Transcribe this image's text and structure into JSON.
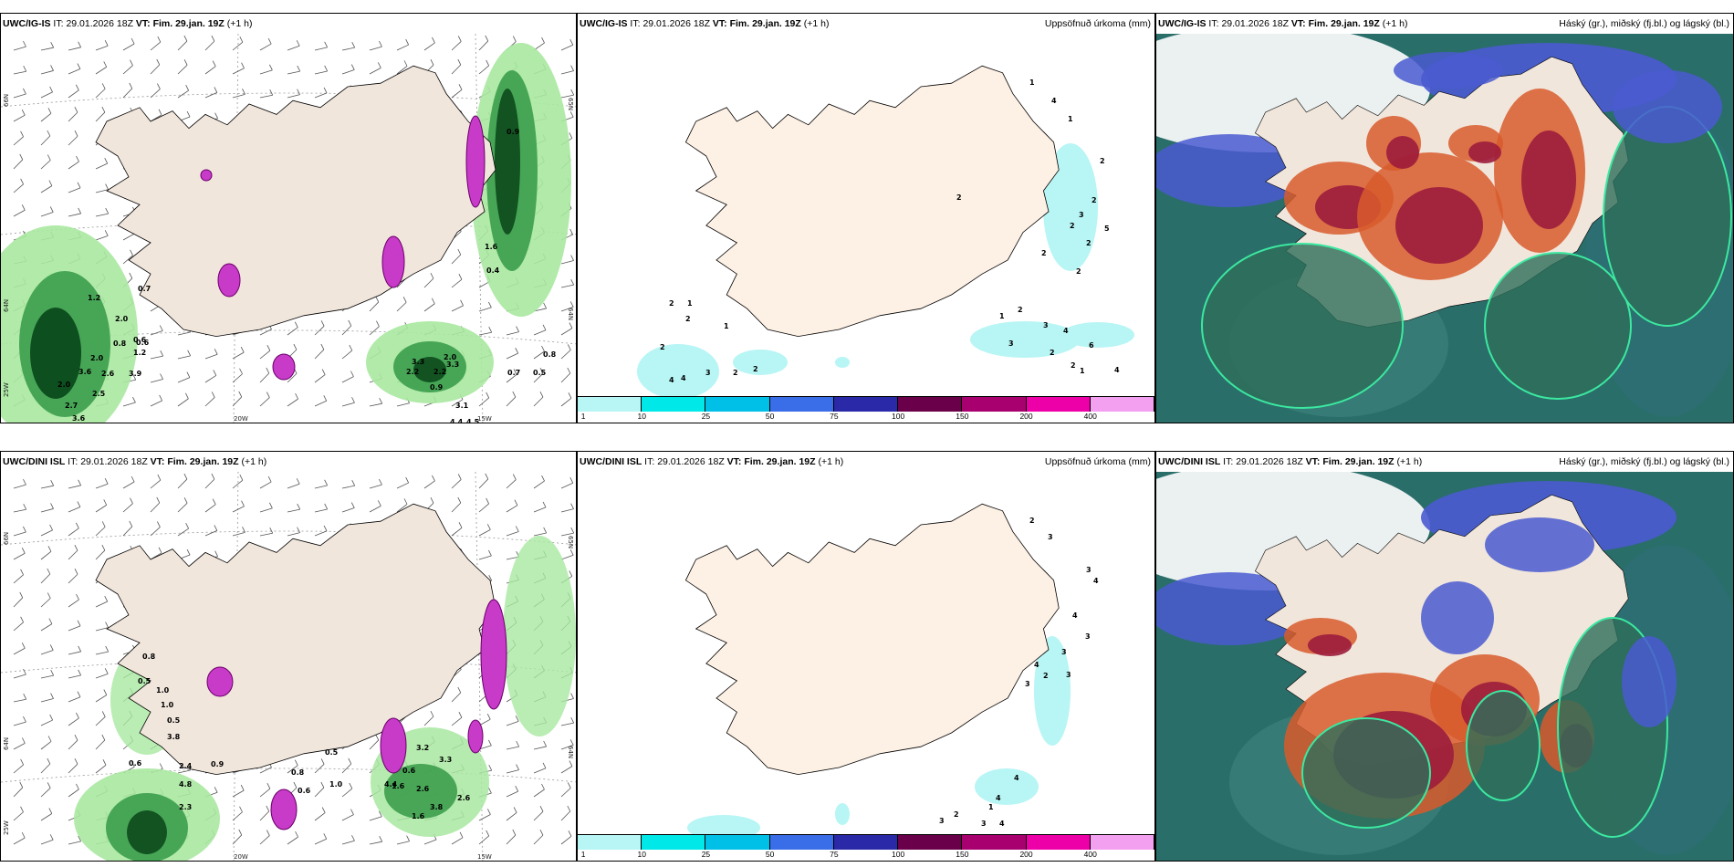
{
  "rows": [
    {
      "model": "UWC/IG-IS",
      "it_label": "IT:",
      "it_value": "29.01.2026 18Z",
      "vt_label": "VT:",
      "vt_value": "Fim. 29.jan. 19Z",
      "offset": "(+1 h)",
      "panel2_title": "Uppsöfnuð úrkoma (mm)",
      "panel3_title": "Háský (gr.), miðský (fj.bl.) og lágský (bl.)",
      "panel1_values": [
        "1.2",
        "2.0",
        "0.7",
        "2.0",
        "0.6",
        "0.8",
        "0.6",
        "1.2",
        "3.9",
        "2.6",
        "3.6",
        "2.0",
        "2.5",
        "2.7",
        "3.6",
        "3.3",
        "2.2",
        "3.3",
        "2.2",
        "2.0",
        "0.9",
        "3.1",
        "4.4",
        "4.5",
        "0.8",
        "0.7",
        "0.5",
        "0.9",
        "1.6",
        "0.4"
      ],
      "panel2_values": [
        "2",
        "1",
        "2",
        "1",
        "2",
        "3",
        "2",
        "4",
        "4",
        "2",
        "2",
        "1",
        "4",
        "1",
        "2",
        "2",
        "3",
        "2",
        "2",
        "5",
        "2",
        "2",
        "1",
        "2",
        "3",
        "4",
        "6",
        "2",
        "1",
        "2",
        "3",
        "4"
      ],
      "lat_labels": [
        "66N",
        "64N",
        "65N",
        "64N"
      ],
      "lon_labels": [
        "20W",
        "15W",
        "25W"
      ]
    },
    {
      "model": "UWC/DINI ISL",
      "it_label": "IT:",
      "it_value": "29.01.2026 18Z",
      "vt_label": "VT:",
      "vt_value": "Fim. 29.jan. 19Z",
      "offset": "(+1 h)",
      "panel2_title": "Uppsöfnuð úrkoma (mm)",
      "panel3_title": "Háský (gr.), miðský (fj.bl.) og lágský (bl.)",
      "panel1_values": [
        "0.8",
        "0.5",
        "1.0",
        "1.0",
        "0.5",
        "3.8",
        "0.6",
        "2.4",
        "4.8",
        "2.3",
        "0.9",
        "0.8",
        "0.6",
        "1.0",
        "0.5",
        "1.6",
        "0.6",
        "3.2",
        "3.3",
        "2.6",
        "4.4",
        "3.8",
        "1.6",
        "2.6"
      ],
      "panel2_values": [
        "2",
        "3",
        "3",
        "4",
        "4",
        "3",
        "3",
        "2",
        "1",
        "4",
        "4",
        "2",
        "3",
        "4",
        "3",
        "3",
        "4",
        "3"
      ],
      "lat_labels": [
        "66N",
        "64N",
        "65N",
        "64N"
      ],
      "lon_labels": [
        "20W",
        "15W",
        "25W"
      ]
    }
  ],
  "colorbar": {
    "labels": [
      "1",
      "10",
      "25",
      "50",
      "75",
      "100",
      "150",
      "200",
      "400"
    ],
    "colors": [
      "#b8f5f5",
      "#00e8e8",
      "#00c0e8",
      "#3a6ee8",
      "#2a2aa8",
      "#6a004a",
      "#a8006e",
      "#ee00a8",
      "#f4a0f0"
    ]
  },
  "colors": {
    "land": "#f1e6dc",
    "land_p2": "#fdf0e4",
    "precip_light": "#a8e8a0",
    "precip_mid": "#3c9e4c",
    "precip_dark": "#0c4a1c",
    "snow_purple": "#c83ac8",
    "high_cloud": "#d0d0d0",
    "mid_cloud_red": "#9c1c3c",
    "mid_cloud_orange": "#d85a2c",
    "low_cloud_blue": "#4a5ad0",
    "teal": "#2a6e6a"
  }
}
